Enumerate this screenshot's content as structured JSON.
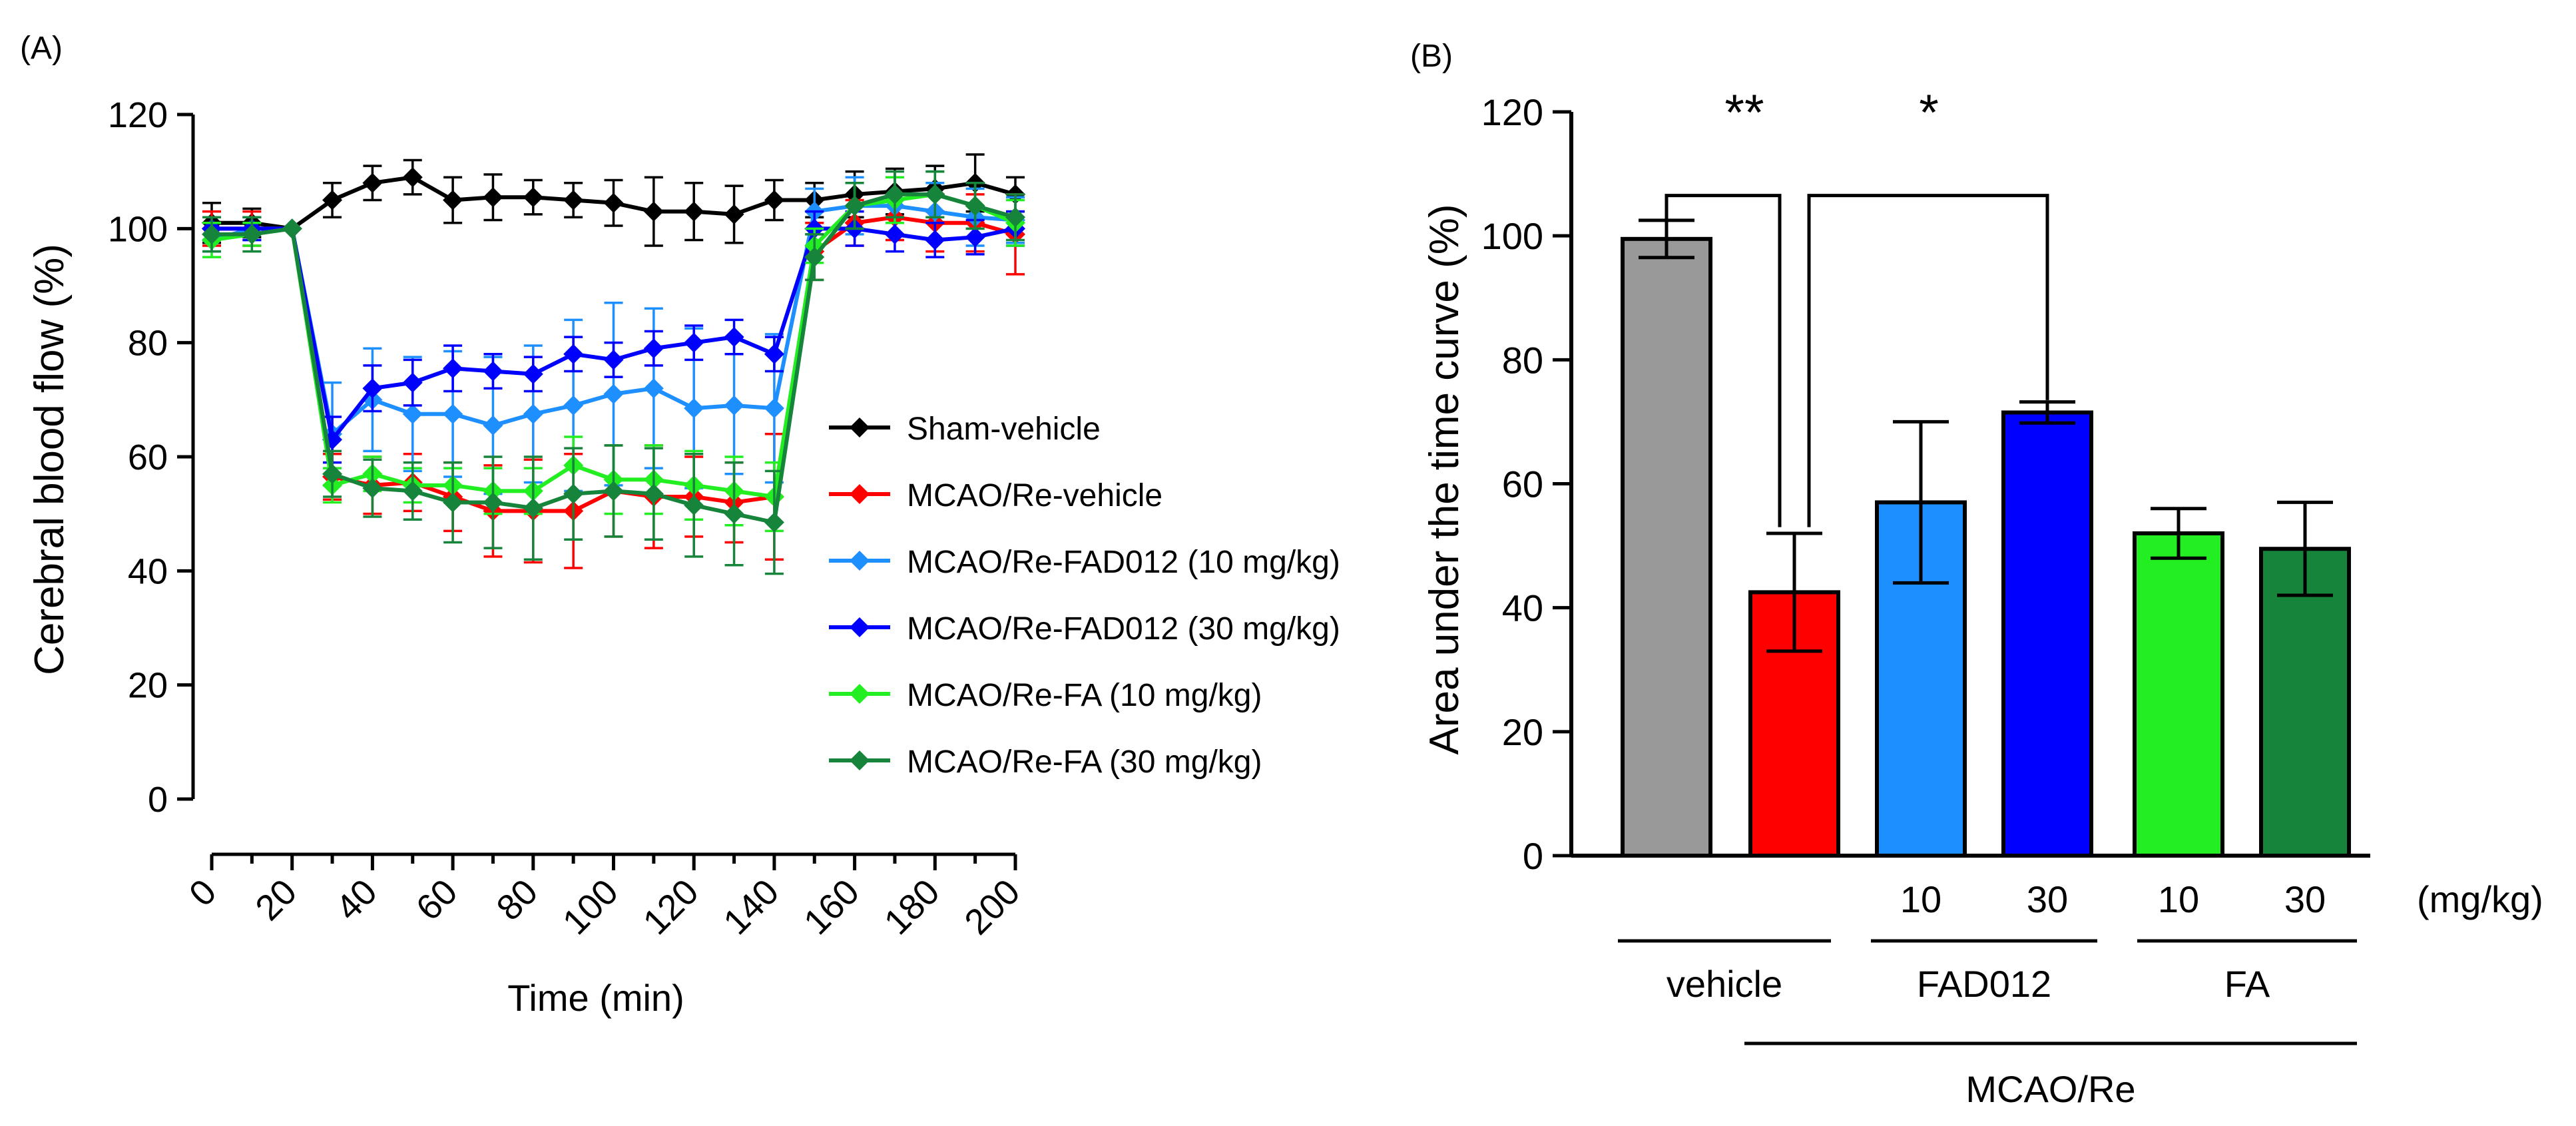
{
  "chart_data": [
    {
      "type": "line",
      "panel_label": "(A)",
      "xlabel": "Time (min)",
      "ylabel": "Cerebral blood flow (%)",
      "xlim": [
        0,
        200
      ],
      "ylim": [
        0,
        120
      ],
      "x_ticks": [
        0,
        20,
        40,
        60,
        80,
        100,
        120,
        140,
        160,
        180,
        200
      ],
      "y_ticks": [
        0,
        20,
        40,
        60,
        80,
        100,
        120
      ],
      "x": [
        0,
        10,
        20,
        30,
        40,
        50,
        60,
        70,
        80,
        90,
        100,
        110,
        120,
        130,
        140,
        150,
        160,
        170,
        180,
        190,
        200
      ],
      "series": [
        {
          "name": "Sham-vehicle",
          "color": "#000000",
          "values": [
            101,
            101,
            100,
            105,
            108,
            109,
            105,
            105.5,
            105.5,
            105,
            104.5,
            103,
            103,
            102.5,
            105,
            105,
            106,
            106.5,
            107,
            108,
            106
          ],
          "errors": [
            3.5,
            2.5,
            0,
            3,
            3,
            3,
            4,
            4,
            3,
            3,
            4,
            6,
            5,
            5,
            3.5,
            3,
            4,
            4,
            4,
            5,
            3
          ]
        },
        {
          "name": "MCAO/Re-vehicle",
          "color": "#ff0000",
          "values": [
            100,
            100,
            100,
            56.5,
            55,
            55.5,
            53,
            50.5,
            50.5,
            50.5,
            54,
            53,
            53,
            52,
            53,
            96,
            101,
            102,
            101,
            101,
            99
          ],
          "errors": [
            3,
            3,
            0,
            4,
            5,
            5,
            6,
            8,
            9,
            10,
            8,
            9,
            7,
            7,
            11,
            5,
            4,
            4,
            5,
            5,
            7
          ]
        },
        {
          "name": "MCAO/Re-FAD012 (10 mg/kg)",
          "color": "#1e8fff",
          "values": [
            98,
            100,
            100,
            64,
            70,
            67.5,
            67.5,
            65.5,
            67.5,
            69,
            71,
            72,
            68.5,
            69,
            68.5,
            103,
            104,
            104,
            103,
            102,
            101.5
          ],
          "errors": [
            2,
            2,
            0,
            9,
            9,
            10,
            11,
            12,
            12,
            15,
            16,
            14,
            14,
            12,
            13,
            4,
            5,
            5,
            5,
            5,
            4
          ]
        },
        {
          "name": "MCAO/Re-FAD012 (30 mg/kg)",
          "color": "#0000ff",
          "values": [
            100,
            100,
            100,
            63,
            72,
            73,
            75.5,
            75,
            74.5,
            78,
            77,
            79,
            80,
            81,
            78,
            100,
            100,
            99,
            98,
            98.5,
            100
          ],
          "errors": [
            2,
            2,
            0,
            4,
            4,
            4,
            4,
            3,
            3,
            3,
            3,
            3,
            3,
            3,
            3,
            3,
            3,
            3,
            3,
            3,
            3
          ]
        },
        {
          "name": "MCAO/Re-FA (10 mg/kg)",
          "color": "#22ee22",
          "values": [
            98,
            99,
            100,
            55,
            57,
            55,
            55,
            54,
            54,
            58.5,
            56,
            56,
            55,
            54,
            53,
            97,
            104,
            105,
            106,
            104,
            101
          ],
          "errors": [
            3,
            2,
            0,
            3,
            3,
            3,
            3,
            4,
            4,
            5,
            6,
            6,
            6,
            6,
            6,
            3,
            4,
            4,
            4,
            4,
            4
          ]
        },
        {
          "name": "MCAO/Re-FA (30 mg/kg)",
          "color": "#17843c",
          "values": [
            99,
            99,
            100,
            57,
            54.5,
            54,
            52,
            52,
            51,
            53.5,
            54,
            53.5,
            51.5,
            50,
            48.5,
            95,
            104,
            106,
            106,
            104,
            102
          ],
          "errors": [
            3,
            3,
            0,
            4,
            5,
            5,
            7,
            8,
            9,
            8,
            8,
            8,
            9,
            9,
            9,
            4,
            4,
            4,
            4,
            4,
            4
          ]
        }
      ]
    },
    {
      "type": "bar",
      "panel_label": "(B)",
      "ylabel": "Area under the time curve (%)",
      "ylim": [
        0,
        120
      ],
      "y_ticks": [
        0,
        20,
        40,
        60,
        80,
        100,
        120
      ],
      "categories": [
        "Sham-vehicle",
        "MCAO/Re-vehicle",
        "MCAO/Re-FAD012 10",
        "MCAO/Re-FAD012 30",
        "MCAO/Re-FA 10",
        "MCAO/Re-FA 30"
      ],
      "values": [
        99.5,
        42.5,
        57,
        71.5,
        52,
        49.5
      ],
      "errors": [
        3,
        9.5,
        13,
        1.7,
        4,
        7.5
      ],
      "colors": [
        "#999999",
        "#ff0000",
        "#1e8fff",
        "#0000ff",
        "#22ee22",
        "#17843c"
      ],
      "dose_labels": [
        "",
        "",
        "10",
        "30",
        "10",
        "30"
      ],
      "dose_unit": "(mg/kg)",
      "group_labels": [
        "vehicle",
        "FAD012",
        "FA"
      ],
      "super_group_label": "MCAO/Re",
      "significance": [
        {
          "label": "**",
          "from": 0,
          "to": 1
        },
        {
          "label": "*",
          "from": 1,
          "to": 3
        }
      ]
    }
  ]
}
